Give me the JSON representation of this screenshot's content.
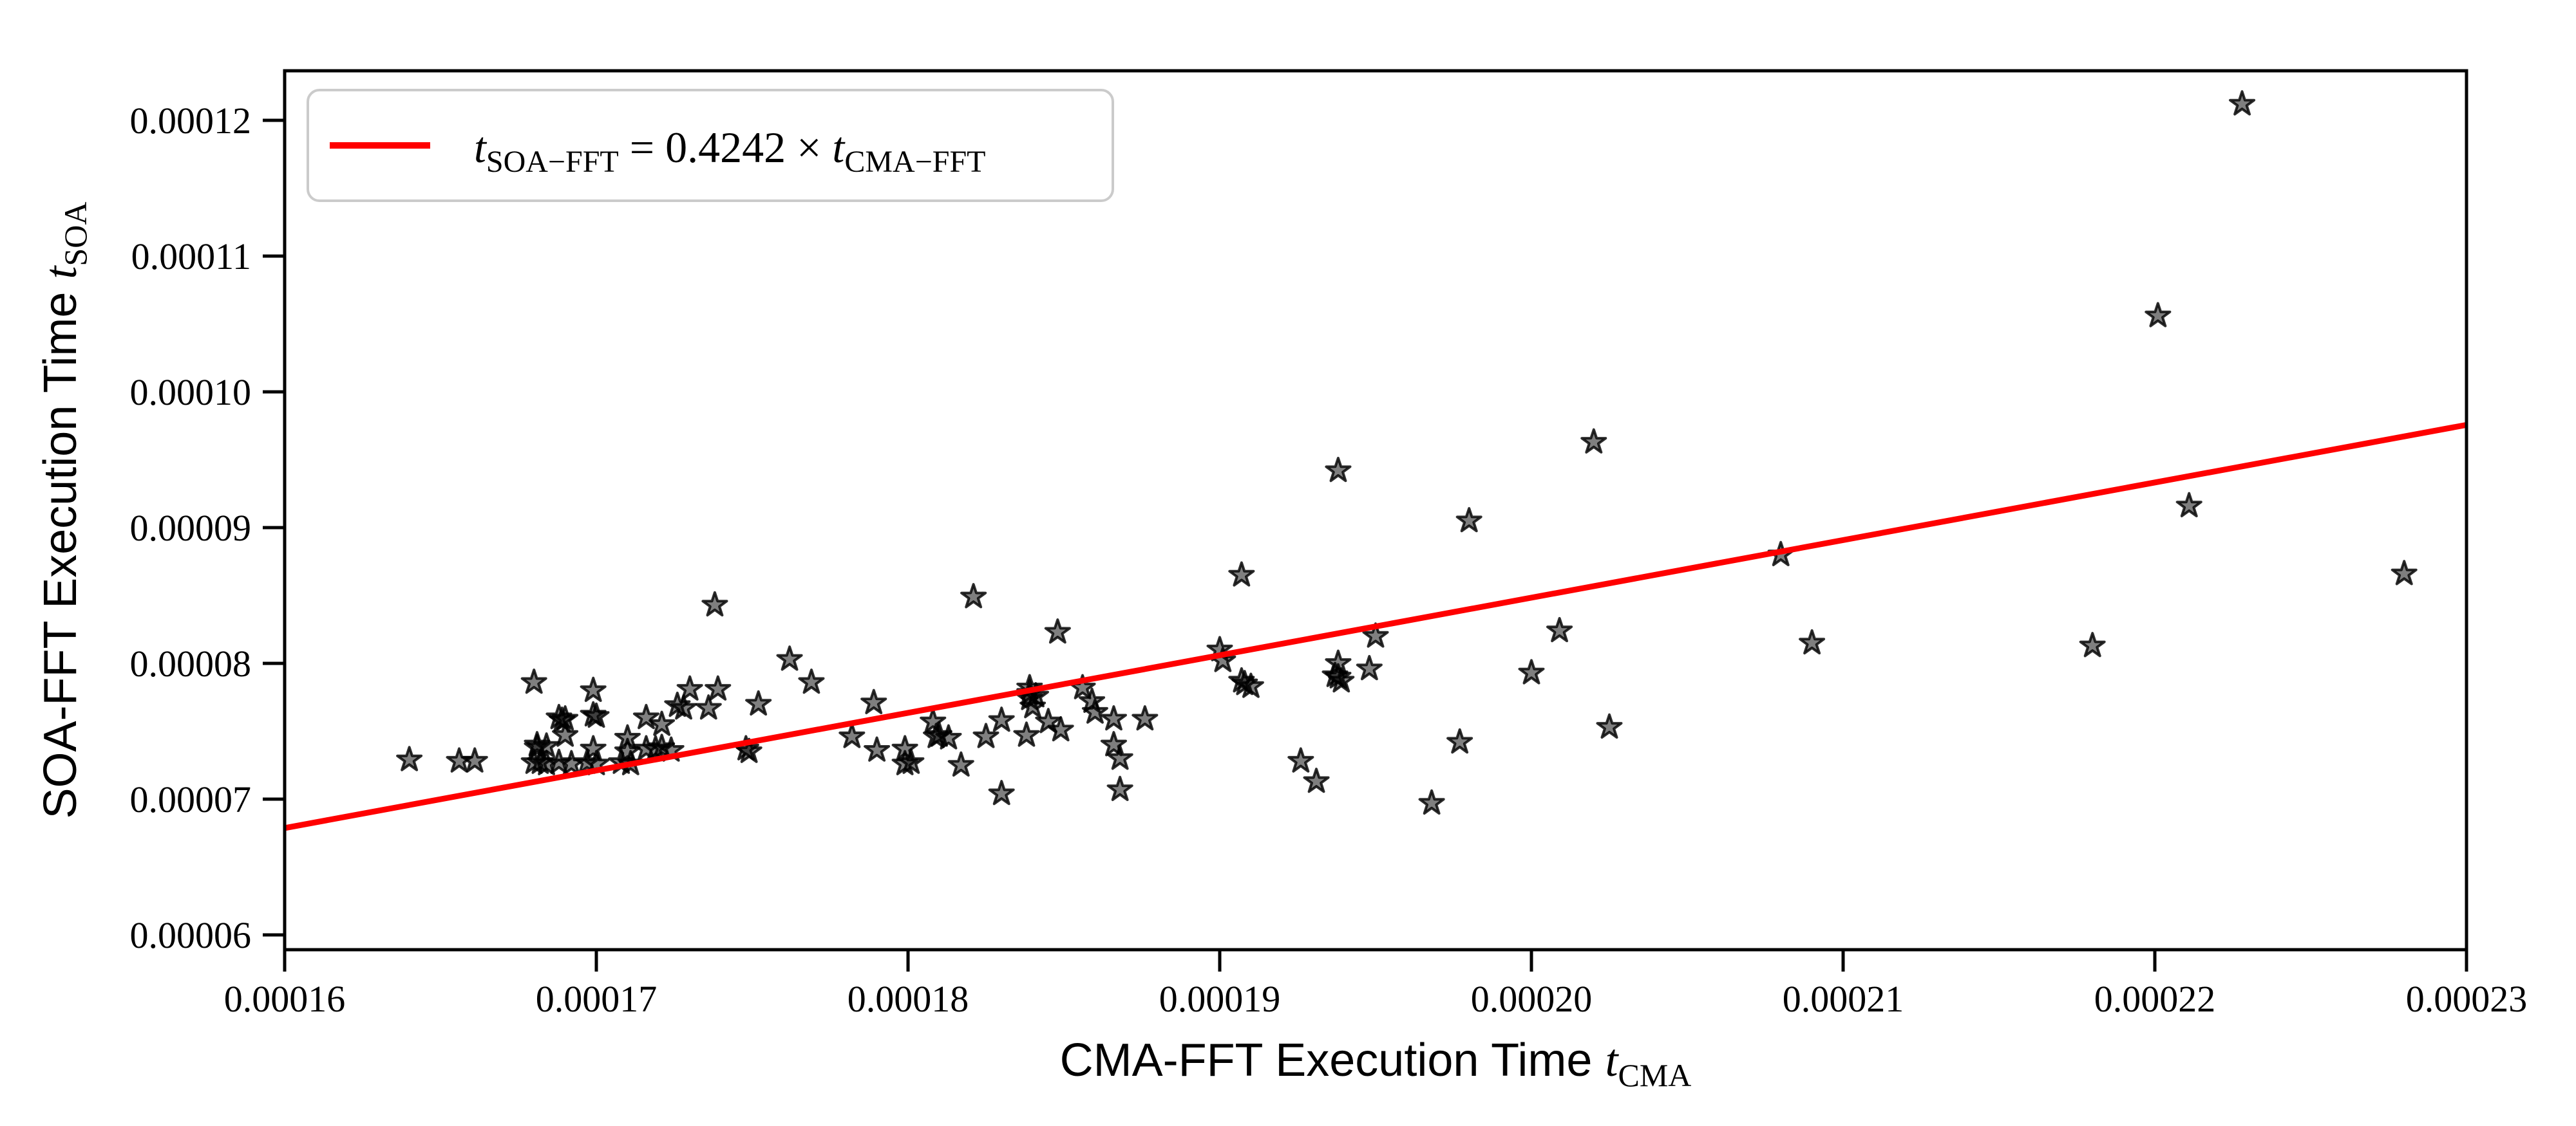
{
  "figure": {
    "background_color": "#ffffff",
    "plot_background_color": "#ffffff",
    "spine_color": "#000000",
    "title": ""
  },
  "chart_data": {
    "type": "scatter",
    "title": "",
    "xlabel": {
      "text": "CMA-FFT Execution Time ",
      "var": "t",
      "sub": "CMA"
    },
    "ylabel": {
      "text": "SOA-FFT Execution Time ",
      "var": "t",
      "sub": "SOA"
    },
    "xlim": [
      0.00016,
      0.00023
    ],
    "ylim": [
      5.891e-05,
      0.00012365
    ],
    "grid": false,
    "legend_position": "upper-left",
    "xticks": {
      "values": [
        0.00016,
        0.00017,
        0.00018,
        0.00019,
        0.0002,
        0.00021,
        0.00022,
        0.00023
      ],
      "labels": [
        "0.00016",
        "0.00017",
        "0.00018",
        "0.00019",
        "0.00020",
        "0.00021",
        "0.00022",
        "0.00023"
      ]
    },
    "yticks": {
      "values": [
        6e-05,
        7e-05,
        8e-05,
        9e-05,
        0.0001,
        0.00011,
        0.00012
      ],
      "labels": [
        "0.00006",
        "0.00007",
        "0.00008",
        "0.00009",
        "0.00010",
        "0.00011",
        "0.00012"
      ]
    },
    "fit_line": {
      "slope": 0.4242,
      "intercept": 0,
      "color": "#FF0000",
      "x_range": [
        0.00016,
        0.00023
      ]
    },
    "legend": {
      "border_color": "#CBCBCB",
      "background_color": "#FFFFFF",
      "entries": [
        {
          "sample_type": "line",
          "sample_color": "#FF0000",
          "label_plain": "t_SOA−FFT = 0.4242 × t_CMA−FFT",
          "label_parts": {
            "var1": "t",
            "sub1": "SOA−FFT",
            "mid": " = 0.4242 × ",
            "var2": "t",
            "sub2": "CMA−FFT"
          }
        }
      ]
    },
    "marker": {
      "shape": "star",
      "fill_color": "#000000",
      "fill_opacity": 0.5,
      "edge_color": "#000000",
      "edge_opacity": 0.82
    },
    "series": [
      {
        "name": "samples",
        "points": [
          [
            0.000164,
            7.29e-05
          ],
          [
            0.0001656,
            7.28e-05
          ],
          [
            0.0001661,
            7.28e-05
          ],
          [
            0.000168,
            7.86e-05
          ],
          [
            0.0001681,
            7.4e-05
          ],
          [
            0.0001684,
            7.39e-05
          ],
          [
            0.0001681,
            7.38e-05
          ],
          [
            0.000168,
            7.27e-05
          ],
          [
            0.0001684,
            7.26e-05
          ],
          [
            0.0001682,
            7.27e-05
          ],
          [
            0.0001688,
            7.6e-05
          ],
          [
            0.000169,
            7.59e-05
          ],
          [
            0.0001689,
            7.58e-05
          ],
          [
            0.000169,
            7.47e-05
          ],
          [
            0.0001688,
            7.27e-05
          ],
          [
            0.0001692,
            7.26e-05
          ],
          [
            0.0001699,
            7.8e-05
          ],
          [
            0.0001699,
            7.62e-05
          ],
          [
            0.00017,
            7.61e-05
          ],
          [
            0.0001699,
            7.37e-05
          ],
          [
            0.0001697,
            7.27e-05
          ],
          [
            0.00017,
            7.26e-05
          ],
          [
            0.000171,
            7.45e-05
          ],
          [
            0.000171,
            7.35e-05
          ],
          [
            0.0001708,
            7.27e-05
          ],
          [
            0.0001711,
            7.26e-05
          ],
          [
            0.0001716,
            7.6e-05
          ],
          [
            0.0001721,
            7.55e-05
          ],
          [
            0.0001716,
            7.37e-05
          ],
          [
            0.0001719,
            7.37e-05
          ],
          [
            0.0001721,
            7.38e-05
          ],
          [
            0.0001724,
            7.36e-05
          ],
          [
            0.0001726,
            7.69e-05
          ],
          [
            0.0001728,
            7.67e-05
          ],
          [
            0.000173,
            7.81e-05
          ],
          [
            0.0001739,
            7.81e-05
          ],
          [
            0.0001736,
            7.67e-05
          ],
          [
            0.0001738,
            8.43e-05
          ],
          [
            0.0001748,
            7.37e-05
          ],
          [
            0.0001749,
            7.35e-05
          ],
          [
            0.0001752,
            7.7e-05
          ],
          [
            0.0001762,
            8.03e-05
          ],
          [
            0.0001769,
            7.86e-05
          ],
          [
            0.0001782,
            7.46e-05
          ],
          [
            0.0001789,
            7.71e-05
          ],
          [
            0.000179,
            7.36e-05
          ],
          [
            0.0001799,
            7.37e-05
          ],
          [
            0.0001799,
            7.26e-05
          ],
          [
            0.0001801,
            7.27e-05
          ],
          [
            0.0001808,
            7.57e-05
          ],
          [
            0.000181,
            7.47e-05
          ],
          [
            0.0001809,
            7.46e-05
          ],
          [
            0.0001813,
            7.45e-05
          ],
          [
            0.0001817,
            7.25e-05
          ],
          [
            0.0001821,
            8.49e-05
          ],
          [
            0.0001825,
            7.46e-05
          ],
          [
            0.000183,
            7.58e-05
          ],
          [
            0.000183,
            7.04e-05
          ],
          [
            0.0001838,
            7.47e-05
          ],
          [
            0.0001839,
            7.82e-05
          ],
          [
            0.0001839,
            7.74e-05
          ],
          [
            0.000184,
            7.68e-05
          ],
          [
            0.0001841,
            7.76e-05
          ],
          [
            0.0001839,
            7.78e-05
          ],
          [
            0.0001845,
            7.57e-05
          ],
          [
            0.0001848,
            8.23e-05
          ],
          [
            0.0001849,
            7.51e-05
          ],
          [
            0.0001856,
            7.82e-05
          ],
          [
            0.0001859,
            7.72e-05
          ],
          [
            0.000186,
            7.64e-05
          ],
          [
            0.0001866,
            7.59e-05
          ],
          [
            0.0001866,
            7.4e-05
          ],
          [
            0.0001868,
            7.3e-05
          ],
          [
            0.0001868,
            7.07e-05
          ],
          [
            0.0001876,
            7.59e-05
          ],
          [
            0.00019,
            8.1e-05
          ],
          [
            0.0001901,
            8.02e-05
          ],
          [
            0.0001907,
            7.87e-05
          ],
          [
            0.000191,
            7.83e-05
          ],
          [
            0.0001908,
            7.85e-05
          ],
          [
            0.0001907,
            8.65e-05
          ],
          [
            0.0001926,
            7.28e-05
          ],
          [
            0.0001931,
            7.13e-05
          ],
          [
            0.0001938,
            9.42e-05
          ],
          [
            0.0001938,
            8e-05
          ],
          [
            0.0001937,
            7.91e-05
          ],
          [
            0.0001939,
            7.87e-05
          ],
          [
            0.0001938,
            7.9e-05
          ],
          [
            0.0001948,
            7.96e-05
          ],
          [
            0.000195,
            8.2e-05
          ],
          [
            0.0001968,
            6.97e-05
          ],
          [
            0.0001977,
            7.42e-05
          ],
          [
            0.000198,
            9.05e-05
          ],
          [
            0.0002,
            7.93e-05
          ],
          [
            0.0002009,
            8.24e-05
          ],
          [
            0.000202,
            9.63e-05
          ],
          [
            0.0002025,
            7.53e-05
          ],
          [
            0.000208,
            8.8e-05
          ],
          [
            0.000209,
            8.15e-05
          ],
          [
            0.000218,
            8.13e-05
          ],
          [
            0.0002201,
            0.0001056
          ],
          [
            0.0002211,
            9.16e-05
          ],
          [
            0.0002228,
            0.0001212
          ],
          [
            0.000228,
            8.66e-05
          ]
        ]
      }
    ]
  }
}
